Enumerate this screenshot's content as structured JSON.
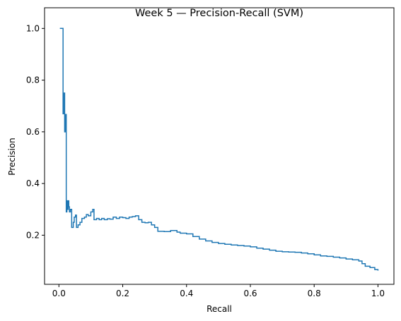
{
  "chart_data": {
    "type": "line",
    "title": "Week 5 — Precision-Recall (SVM)",
    "xlabel": "Recall",
    "ylabel": "Precision",
    "xlim": [
      -0.045,
      1.05
    ],
    "ylim": [
      0.01,
      1.08
    ],
    "xticks": [
      0.0,
      0.2,
      0.4,
      0.6,
      0.8,
      1.0
    ],
    "yticks": [
      0.2,
      0.4,
      0.6,
      0.8,
      1.0
    ],
    "xtick_labels": [
      "0.0",
      "0.2",
      "0.4",
      "0.6",
      "0.8",
      "1.0"
    ],
    "ytick_labels": [
      "0.2",
      "0.4",
      "0.6",
      "0.8",
      "1.0"
    ],
    "grid": false,
    "legend": "none",
    "step": "post",
    "series": [
      {
        "color": "#1f77b4",
        "points": [
          [
            0.003,
            1.0
          ],
          [
            0.013,
            1.0
          ],
          [
            0.013,
            0.67
          ],
          [
            0.016,
            0.75
          ],
          [
            0.018,
            0.6
          ],
          [
            0.021,
            0.667
          ],
          [
            0.023,
            0.29
          ],
          [
            0.025,
            0.333
          ],
          [
            0.027,
            0.3
          ],
          [
            0.029,
            0.333
          ],
          [
            0.031,
            0.31
          ],
          [
            0.033,
            0.29
          ],
          [
            0.036,
            0.3
          ],
          [
            0.04,
            0.23
          ],
          [
            0.045,
            0.25
          ],
          [
            0.048,
            0.27
          ],
          [
            0.052,
            0.278
          ],
          [
            0.055,
            0.23
          ],
          [
            0.06,
            0.24
          ],
          [
            0.066,
            0.25
          ],
          [
            0.072,
            0.265
          ],
          [
            0.08,
            0.27
          ],
          [
            0.086,
            0.28
          ],
          [
            0.092,
            0.275
          ],
          [
            0.1,
            0.29
          ],
          [
            0.106,
            0.3
          ],
          [
            0.11,
            0.26
          ],
          [
            0.118,
            0.265
          ],
          [
            0.126,
            0.26
          ],
          [
            0.134,
            0.265
          ],
          [
            0.142,
            0.26
          ],
          [
            0.152,
            0.264
          ],
          [
            0.16,
            0.262
          ],
          [
            0.17,
            0.27
          ],
          [
            0.18,
            0.265
          ],
          [
            0.19,
            0.27
          ],
          [
            0.2,
            0.268
          ],
          [
            0.21,
            0.265
          ],
          [
            0.22,
            0.27
          ],
          [
            0.23,
            0.272
          ],
          [
            0.24,
            0.275
          ],
          [
            0.25,
            0.26
          ],
          [
            0.26,
            0.25
          ],
          [
            0.27,
            0.248
          ],
          [
            0.28,
            0.25
          ],
          [
            0.29,
            0.24
          ],
          [
            0.3,
            0.23
          ],
          [
            0.31,
            0.215
          ],
          [
            0.33,
            0.214
          ],
          [
            0.35,
            0.218
          ],
          [
            0.37,
            0.212
          ],
          [
            0.38,
            0.208
          ],
          [
            0.4,
            0.205
          ],
          [
            0.42,
            0.195
          ],
          [
            0.44,
            0.185
          ],
          [
            0.46,
            0.178
          ],
          [
            0.48,
            0.172
          ],
          [
            0.5,
            0.168
          ],
          [
            0.52,
            0.165
          ],
          [
            0.54,
            0.162
          ],
          [
            0.56,
            0.16
          ],
          [
            0.58,
            0.158
          ],
          [
            0.6,
            0.155
          ],
          [
            0.62,
            0.15
          ],
          [
            0.64,
            0.146
          ],
          [
            0.66,
            0.142
          ],
          [
            0.68,
            0.138
          ],
          [
            0.7,
            0.136
          ],
          [
            0.72,
            0.135
          ],
          [
            0.74,
            0.134
          ],
          [
            0.76,
            0.131
          ],
          [
            0.78,
            0.128
          ],
          [
            0.8,
            0.124
          ],
          [
            0.82,
            0.12
          ],
          [
            0.84,
            0.118
          ],
          [
            0.86,
            0.115
          ],
          [
            0.88,
            0.112
          ],
          [
            0.9,
            0.108
          ],
          [
            0.92,
            0.105
          ],
          [
            0.94,
            0.1
          ],
          [
            0.95,
            0.09
          ],
          [
            0.96,
            0.08
          ],
          [
            0.975,
            0.075
          ],
          [
            0.99,
            0.067
          ],
          [
            1.0,
            0.063
          ]
        ]
      }
    ]
  }
}
